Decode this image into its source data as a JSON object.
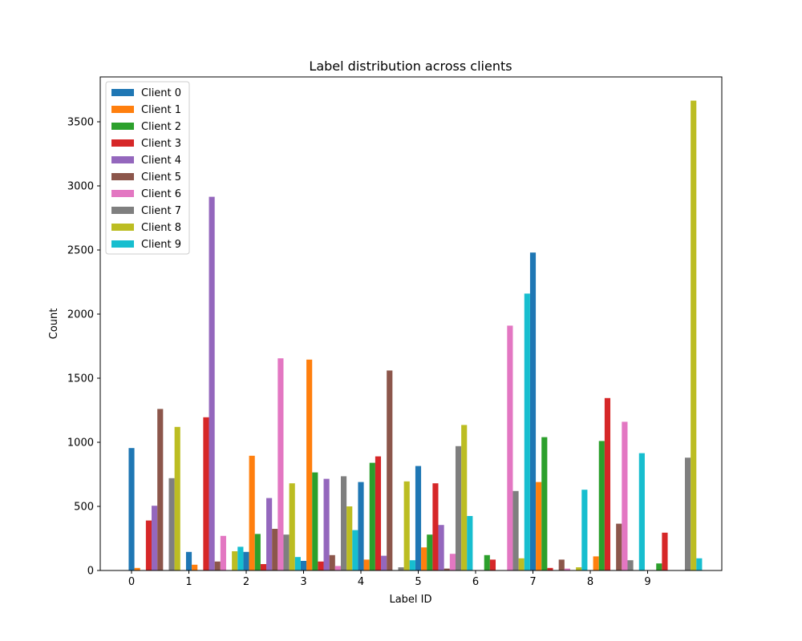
{
  "chart_data": {
    "type": "bar",
    "title": "Label distribution across clients",
    "xlabel": "Label ID",
    "ylabel": "Count",
    "categories": [
      "0",
      "1",
      "2",
      "3",
      "4",
      "5",
      "6",
      "7",
      "8",
      "9"
    ],
    "ylim": [
      0,
      3850
    ],
    "yticks": [
      0,
      500,
      1000,
      1500,
      2000,
      2500,
      3000,
      3500
    ],
    "ytick_labels": [
      "0",
      "500",
      "1000",
      "1500",
      "2000",
      "2500",
      "3000",
      "3500"
    ],
    "grid": false,
    "legend_position": "top-left",
    "series": [
      {
        "name": "Client 0",
        "color": "#1f77b4",
        "values": [
          955,
          145,
          145,
          75,
          690,
          815,
          0,
          2480,
          0,
          0
        ]
      },
      {
        "name": "Client 1",
        "color": "#ff7f0e",
        "values": [
          20,
          45,
          895,
          1645,
          85,
          180,
          0,
          690,
          110,
          0
        ]
      },
      {
        "name": "Client 2",
        "color": "#2ca02c",
        "values": [
          0,
          0,
          285,
          765,
          840,
          280,
          120,
          1040,
          1010,
          55
        ]
      },
      {
        "name": "Client 3",
        "color": "#d62728",
        "values": [
          390,
          1195,
          50,
          70,
          890,
          680,
          85,
          20,
          1345,
          295
        ]
      },
      {
        "name": "Client 4",
        "color": "#9467bd",
        "values": [
          505,
          2915,
          565,
          715,
          115,
          355,
          0,
          0,
          0,
          0
        ]
      },
      {
        "name": "Client 5",
        "color": "#8c564b",
        "values": [
          1260,
          70,
          325,
          120,
          1560,
          15,
          0,
          85,
          365,
          0
        ]
      },
      {
        "name": "Client 6",
        "color": "#e377c2",
        "values": [
          0,
          270,
          1655,
          35,
          0,
          130,
          1910,
          15,
          1160,
          0
        ]
      },
      {
        "name": "Client 7",
        "color": "#7f7f7f",
        "values": [
          720,
          0,
          280,
          735,
          25,
          970,
          620,
          0,
          80,
          880
        ]
      },
      {
        "name": "Client 8",
        "color": "#bcbd22",
        "values": [
          1120,
          150,
          680,
          500,
          695,
          1135,
          95,
          25,
          0,
          3665
        ]
      },
      {
        "name": "Client 9",
        "color": "#17becf",
        "values": [
          0,
          185,
          105,
          315,
          80,
          425,
          2160,
          630,
          915,
          95
        ]
      }
    ]
  }
}
